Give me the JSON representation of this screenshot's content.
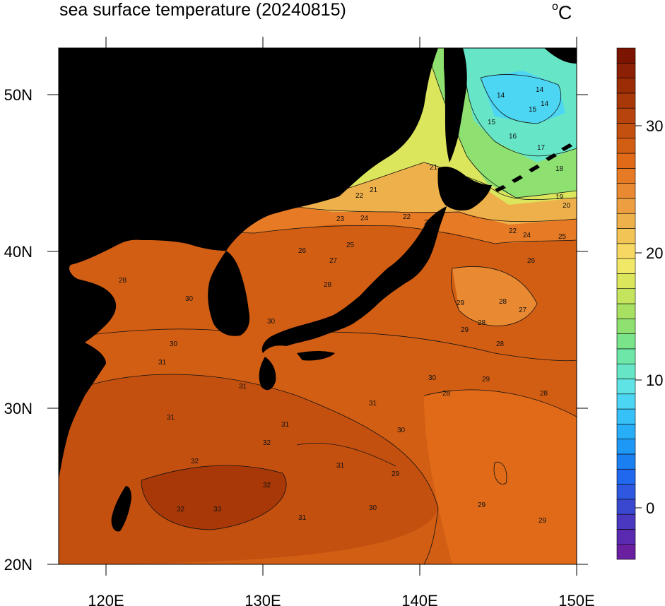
{
  "title": "sea surface temperature (20240815)",
  "unit": {
    "superscript": "o",
    "text": "C"
  },
  "axes": {
    "lon_ticks": [
      "120E",
      "130E",
      "140E",
      "150E"
    ],
    "lat_ticks": [
      "50N",
      "40N",
      "30N",
      "20N"
    ]
  },
  "colorbar": {
    "labels": [
      "30",
      "20",
      "10",
      "0"
    ],
    "colors": [
      "#6a1fa0",
      "#5a2ab0",
      "#4a38c0",
      "#3a48d0",
      "#2e58e0",
      "#2068ee",
      "#1a80f2",
      "#1e98f5",
      "#28aef7",
      "#36c2f8",
      "#4cd6f4",
      "#5fe3e4",
      "#66e6c6",
      "#6ee6a8",
      "#7ae48a",
      "#8ee070",
      "#a8e062",
      "#c4e45e",
      "#dce65c",
      "#f2e868",
      "#f6d862",
      "#f2c456",
      "#eeb04a",
      "#ec9e40",
      "#e98a32",
      "#e77a24",
      "#e06a18",
      "#d25e14",
      "#c45010",
      "#b6440c",
      "#a83808",
      "#9a2c06",
      "#8c2004",
      "#7c1402"
    ]
  },
  "contour_labels": [
    "14",
    "14",
    "14",
    "15",
    "15",
    "16",
    "17",
    "18",
    "19",
    "20",
    "21",
    "21",
    "22",
    "22",
    "22",
    "23",
    "23",
    "24",
    "24",
    "25",
    "25",
    "26",
    "26",
    "27",
    "27",
    "28",
    "28",
    "28",
    "28",
    "28",
    "28",
    "28",
    "29",
    "29",
    "29",
    "29",
    "29",
    "29",
    "30",
    "30",
    "30",
    "30",
    "30",
    "30",
    "31",
    "31",
    "31",
    "31",
    "31",
    "31",
    "31",
    "32",
    "32",
    "32",
    "32",
    "33"
  ]
}
